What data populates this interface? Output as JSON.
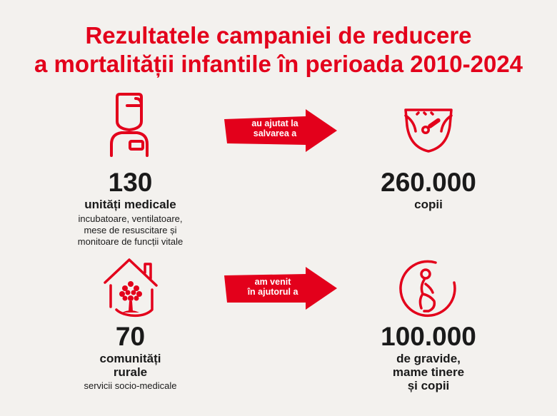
{
  "title": {
    "line1": "Rezultatele campaniei de reducere",
    "line2": "a mortalității infantile în perioada 2010-2024"
  },
  "row1": {
    "left": {
      "icon": "medical-staff-icon",
      "number": "130",
      "label": "unități medicale",
      "detail": [
        "incubatoare, ventilatoare,",
        "mese de resuscitare și",
        "monitoare de funcții vitale"
      ]
    },
    "arrow": {
      "line1": "au ajutat la",
      "line2": "salvarea a"
    },
    "right": {
      "icon": "diaper-icon",
      "number": "260.000",
      "label": "copii"
    }
  },
  "row2": {
    "left": {
      "icon": "rural-house-tree-icon",
      "number": "70",
      "label": [
        "comunități",
        "rurale"
      ],
      "detail": "servicii socio-medicale"
    },
    "arrow": {
      "line1": "am venit",
      "line2": "în ajutorul a"
    },
    "right": {
      "icon": "pregnant-woman-icon",
      "number": "100.000",
      "label": [
        "de gravide,",
        "mame tinere",
        "și copii"
      ]
    }
  },
  "colors": {
    "accent": "#e3001b",
    "background": "#f3f1ee",
    "text": "#1a1a1a"
  }
}
